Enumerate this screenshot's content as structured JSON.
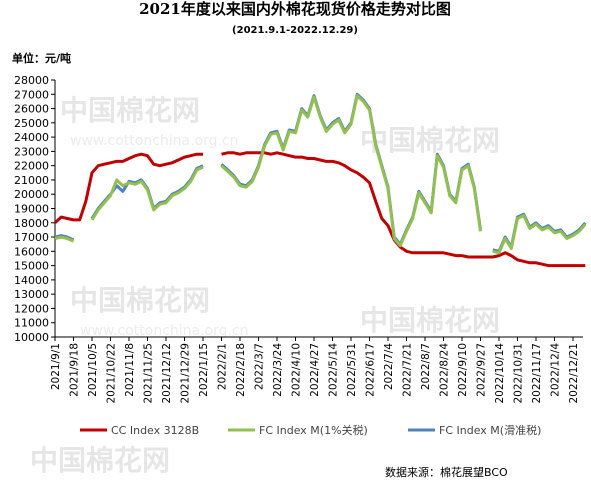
{
  "chart_data": {
    "type": "line",
    "title": "2021年度以来国内外棉花现货价格走势对比图",
    "subtitle": "(2021.9.1-2022.12.29)",
    "y_label": "单位：元/吨",
    "source": "数据来源：棉花展望BCO",
    "watermark": [
      "中国棉花网",
      "www.cottonchina.org.cn"
    ],
    "categories": [
      "2021/9/1",
      null,
      null,
      "2021/9/18",
      null,
      null,
      "2021/10/5",
      null,
      null,
      "2021/10/22",
      null,
      null,
      "2021/11/8",
      null,
      null,
      "2021/11/25",
      null,
      null,
      "2021/12/12",
      null,
      null,
      "2021/12/29",
      null,
      null,
      "2022/1/15",
      null,
      null,
      "2022/2/1",
      null,
      null,
      "2022/2/18",
      null,
      null,
      "2022/3/7",
      null,
      null,
      "2022/3/24",
      null,
      null,
      "2022/4/10",
      null,
      null,
      "2022/4/27",
      null,
      null,
      "2022/5/14",
      null,
      null,
      "2022/5/31",
      null,
      null,
      "2022/6/17",
      null,
      null,
      "2022/7/4",
      null,
      null,
      "2022/7/21",
      null,
      null,
      "2022/8/7",
      null,
      null,
      "2022/8/24",
      null,
      null,
      "2022/9/10",
      null,
      null,
      "2022/9/27",
      null,
      null,
      "2022/10/14",
      null,
      null,
      "2022/10/31",
      null,
      null,
      "2022/11/17",
      null,
      null,
      "2022/12/4",
      null,
      null,
      "2022/12/21",
      null,
      null
    ],
    "series": [
      {
        "name": "CC Index 3128B",
        "color": "#c00000",
        "values": [
          18000,
          18400,
          18300,
          18200,
          18200,
          19500,
          21500,
          22000,
          22100,
          22200,
          22300,
          22300,
          22500,
          22700,
          22800,
          22700,
          22100,
          22000,
          22100,
          22200,
          22400,
          22600,
          22700,
          22800,
          22800,
          null,
          null,
          22800,
          22900,
          22900,
          22800,
          22900,
          22900,
          22900,
          22900,
          22800,
          22900,
          22800,
          22700,
          22600,
          22600,
          22500,
          22500,
          22400,
          22300,
          22300,
          22200,
          22000,
          21700,
          21500,
          21200,
          20800,
          19500,
          18300,
          17800,
          16800,
          16300,
          16000,
          15900,
          15900,
          15900,
          15900,
          15900,
          15900,
          15800,
          15700,
          15700,
          15600,
          15600,
          15600,
          15600,
          15600,
          15700,
          15900,
          15700,
          15400,
          15300,
          15200,
          15200,
          15100,
          15000,
          15000,
          15000,
          15000,
          15000,
          15000,
          15000
        ]
      },
      {
        "name": "FC Index M(1%关税)",
        "color": "#92c050",
        "values": [
          16900,
          17000,
          16900,
          16700,
          null,
          null,
          18200,
          18900,
          19400,
          19900,
          21000,
          20600,
          20800,
          20700,
          20900,
          20300,
          18900,
          19300,
          19400,
          19900,
          20100,
          20400,
          20900,
          21700,
          21900,
          null,
          null,
          22000,
          21600,
          21200,
          20600,
          20500,
          20900,
          21900,
          23400,
          24200,
          24300,
          23100,
          24400,
          24300,
          25900,
          25400,
          26800,
          25400,
          24400,
          24900,
          25200,
          24300,
          24900,
          26900,
          26500,
          25900,
          23400,
          21900,
          20400,
          16900,
          16400,
          17400,
          18300,
          20100,
          19400,
          18700,
          22700,
          21900,
          19900,
          19400,
          21700,
          22000,
          20400,
          17400,
          null,
          16000,
          15900,
          16900,
          16200,
          18300,
          18500,
          17600,
          17900,
          17500,
          17700,
          17300,
          17400,
          16900,
          17100,
          17400,
          17900
        ]
      },
      {
        "name": "FC Index M(滑准税)",
        "color": "#4f81bd",
        "values": [
          17000,
          17100,
          17000,
          16800,
          null,
          null,
          18300,
          19000,
          19500,
          20000,
          20600,
          20200,
          20900,
          20800,
          21000,
          20400,
          19000,
          19400,
          19500,
          20000,
          20200,
          20500,
          21000,
          21800,
          22000,
          null,
          null,
          22100,
          21700,
          21300,
          20700,
          20600,
          21000,
          22000,
          23500,
          24300,
          24400,
          23200,
          24500,
          24400,
          26000,
          25500,
          26900,
          25500,
          24500,
          25000,
          25300,
          24400,
          25000,
          27000,
          26600,
          26000,
          23500,
          22000,
          20500,
          17000,
          16500,
          17500,
          18400,
          20200,
          19500,
          18800,
          22800,
          22000,
          20000,
          19500,
          21800,
          22100,
          20500,
          17500,
          null,
          16100,
          16000,
          17000,
          16300,
          18400,
          18600,
          17700,
          18000,
          17600,
          17800,
          17400,
          17500,
          17000,
          17200,
          17500,
          18000
        ]
      }
    ],
    "ylim": [
      10000,
      28000
    ],
    "yticks": [
      10000,
      11000,
      12000,
      13000,
      14000,
      15000,
      16000,
      17000,
      18000,
      19000,
      20000,
      21000,
      22000,
      23000,
      24000,
      25000,
      26000,
      27000,
      28000
    ]
  }
}
